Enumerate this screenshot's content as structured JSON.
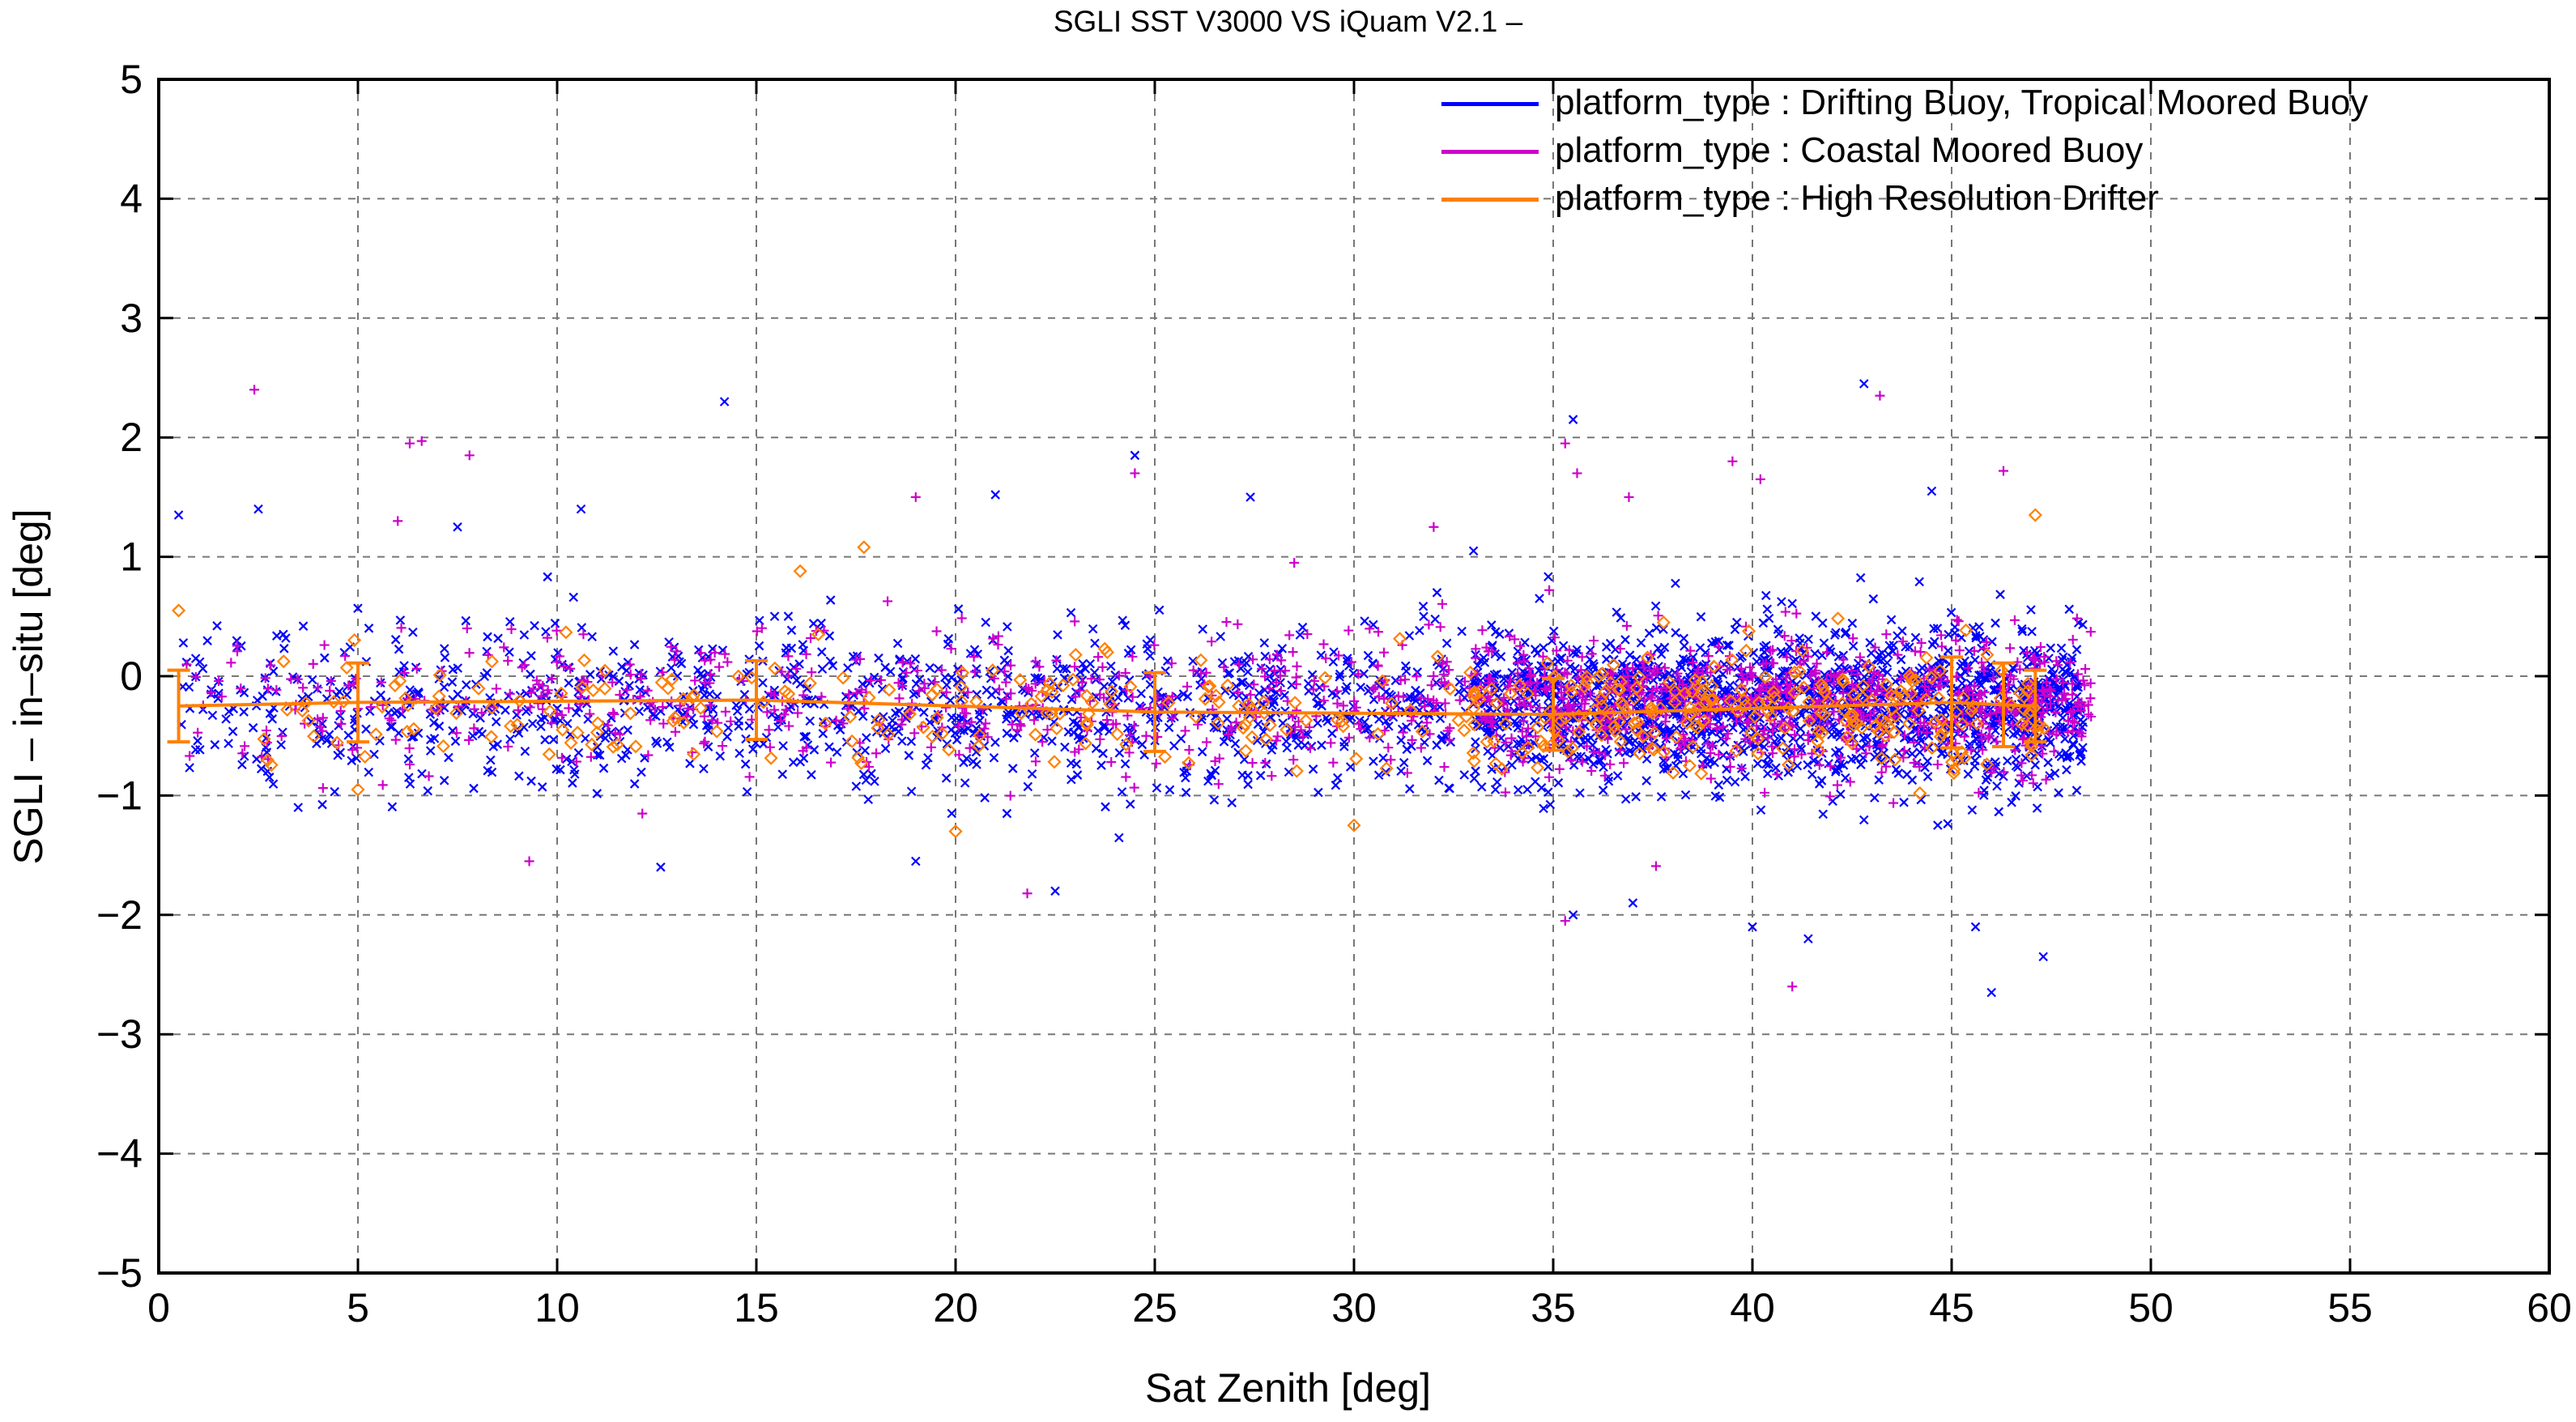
{
  "chart_data": {
    "type": "scatter",
    "title": "SGLI SST V3000 VS iQuam V2.1  –",
    "xlabel": "Sat Zenith [deg]",
    "ylabel": "SGLI – in–situ [deg]",
    "xlim": [
      0,
      60
    ],
    "ylim": [
      -5,
      5
    ],
    "xticks": [
      "0",
      "5",
      "10",
      "15",
      "20",
      "25",
      "30",
      "35",
      "40",
      "45",
      "50",
      "55",
      "60"
    ],
    "yticks": [
      "5",
      "4",
      "3",
      "2",
      "1",
      "0",
      "−1",
      "−2",
      "−3",
      "−4",
      "−5"
    ],
    "grid": true,
    "legend_position": "top-right",
    "series": [
      {
        "name": "platform_type : Drifting Buoy, Tropical Moored Buoy",
        "color": "#0000ff",
        "marker": "x",
        "x_range": [
          0.3,
          48.3
        ],
        "mean": -0.25,
        "spread": 0.38,
        "outliers": [
          [
            0.5,
            1.35
          ],
          [
            2.5,
            1.4
          ],
          [
            14.2,
            2.3
          ],
          [
            24.5,
            1.85
          ],
          [
            35.5,
            2.15
          ],
          [
            42.8,
            2.45
          ],
          [
            27.4,
            1.5
          ],
          [
            21,
            1.52
          ],
          [
            10.6,
            1.4
          ],
          [
            7.5,
            1.25
          ],
          [
            41.4,
            -2.2
          ],
          [
            46,
            -2.65
          ],
          [
            47.3,
            -2.35
          ],
          [
            45.6,
            -2.1
          ],
          [
            40,
            -2.1
          ],
          [
            22.5,
            -1.8
          ],
          [
            35.5,
            -2.0
          ],
          [
            37,
            -1.9
          ],
          [
            12.6,
            -1.6
          ],
          [
            19,
            -1.55
          ],
          [
            3.5,
            -1.1
          ],
          [
            44.5,
            1.55
          ],
          [
            33,
            1.05
          ]
        ]
      },
      {
        "name": "platform_type : Coastal Moored Buoy",
        "color": "#cc00cc",
        "marker": "+",
        "x_range": [
          0.3,
          48.5
        ],
        "mean": -0.22,
        "spread": 0.33,
        "outliers": [
          [
            2.4,
            2.4
          ],
          [
            6.3,
            1.95
          ],
          [
            6.6,
            1.97
          ],
          [
            7.8,
            1.85
          ],
          [
            35.3,
            1.95
          ],
          [
            35.6,
            1.7
          ],
          [
            43.2,
            2.35
          ],
          [
            39.5,
            1.8
          ],
          [
            40.2,
            1.65
          ],
          [
            36.9,
            1.5
          ],
          [
            24.5,
            1.7
          ],
          [
            19,
            1.5
          ],
          [
            32,
            1.25
          ],
          [
            41,
            -2.6
          ],
          [
            35.3,
            -2.05
          ],
          [
            21.8,
            -1.82
          ],
          [
            9.3,
            -1.55
          ],
          [
            6,
            1.3
          ],
          [
            46.3,
            1.72
          ],
          [
            28.5,
            0.95
          ]
        ]
      },
      {
        "name": "platform_type : High Resolution Drifter",
        "color": "#ff8000",
        "marker": "diamond",
        "x_range": [
          0.3,
          47.4
        ],
        "mean": -0.28,
        "spread": 0.27,
        "outliers": [
          [
            47.1,
            1.35
          ],
          [
            16.1,
            0.88
          ],
          [
            17.7,
            1.08
          ],
          [
            0.5,
            0.55
          ],
          [
            5,
            -0.95
          ],
          [
            30,
            -1.25
          ],
          [
            20,
            -1.3
          ]
        ],
        "binned_mean": {
          "x": [
            0.5,
            5,
            15,
            25,
            35,
            45,
            46.3,
            47.1
          ],
          "y": [
            -0.25,
            -0.22,
            -0.2,
            -0.3,
            -0.32,
            -0.22,
            -0.24,
            -0.25
          ],
          "sd": [
            0.3,
            0.33,
            0.33,
            0.33,
            0.3,
            0.38,
            0.35,
            0.3
          ]
        }
      }
    ]
  }
}
